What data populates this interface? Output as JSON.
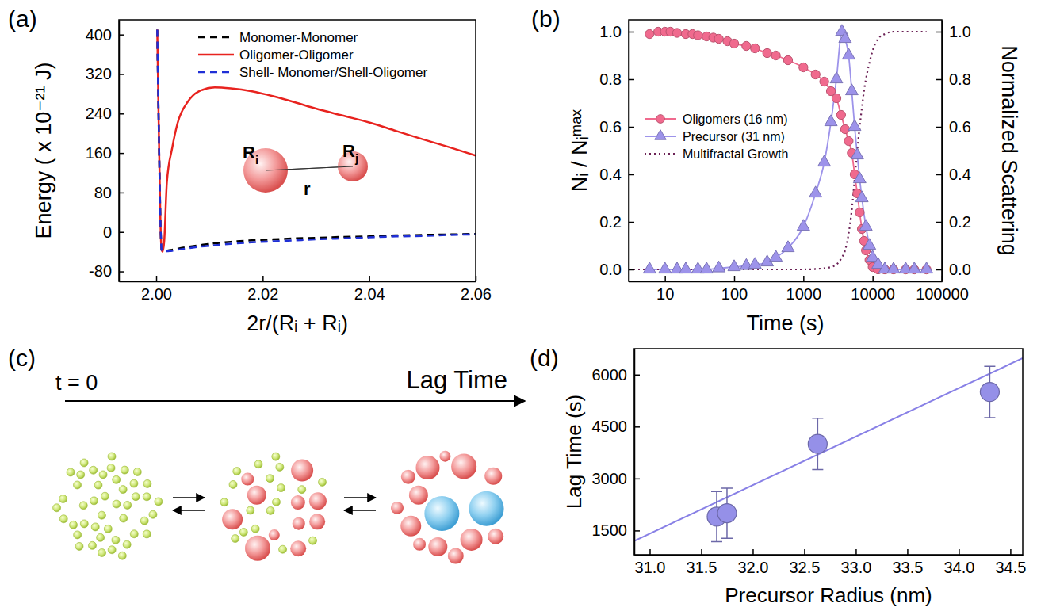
{
  "chart_data": [
    {
      "type": "line",
      "panel_label": "(a)",
      "xlabel": "2r/(Rᵢ + Rᵢ)",
      "ylabel": "Energy ( x 10⁻²¹ J)",
      "x": [
        2.0002,
        2.0005,
        2.0008,
        2.001,
        2.0012,
        2.0015,
        2.002,
        2.003,
        2.004,
        2.006,
        2.008,
        2.011,
        2.014,
        2.018,
        2.022,
        2.026,
        2.03,
        2.035,
        2.04,
        2.045,
        2.05,
        2.055,
        2.06
      ],
      "xlim": [
        1.993,
        2.06
      ],
      "xticks": [
        {
          "value": 2,
          "label": "2.00"
        },
        2.02,
        2.04,
        2.06
      ],
      "ylim": [
        -100,
        430
      ],
      "yticks": [
        -80,
        0,
        80,
        160,
        240,
        320,
        400
      ],
      "grid": false,
      "legend": "upper left",
      "annotations": [
        "Ri",
        "Rj",
        "r"
      ],
      "series": [
        {
          "name": "Monomer-Monomer",
          "color": "#000000",
          "line_style": "dashed",
          "values": [
            410,
            200,
            20,
            -35,
            -40,
            -40,
            -38,
            -36,
            -34,
            -30,
            -27,
            -23,
            -20,
            -17,
            -15,
            -13,
            -12,
            -10,
            -9,
            -7,
            -6,
            -5,
            -4
          ]
        },
        {
          "name": "Oligomer-Oligomer",
          "color": "#e8231f",
          "line_style": "solid",
          "values": [
            410,
            200,
            20,
            -35,
            -40,
            -20,
            100,
            170,
            220,
            265,
            285,
            293,
            291,
            285,
            275,
            263,
            250,
            236,
            222,
            205,
            188,
            172,
            155
          ]
        },
        {
          "name": "Shell- Monomer/Shell-Oligomer",
          "color": "#1f2fd6",
          "line_style": "dashed",
          "values": [
            410,
            200,
            20,
            -35,
            -40,
            -40,
            -39,
            -38,
            -36,
            -33,
            -30,
            -27,
            -24,
            -21,
            -19,
            -17,
            -15,
            -13,
            -11,
            -9,
            -8,
            -6,
            -5
          ]
        }
      ]
    },
    {
      "type": "line",
      "panel_label": "(b)",
      "log": "x",
      "xlabel": "Time (s)",
      "ylabel": "Nᵢ / Nᵢᵐᵃˣ",
      "y2label": "Normalized Scattering",
      "xlim": [
        3,
        100000
      ],
      "xticks": [
        10,
        100,
        1000,
        10000,
        100000
      ],
      "ylim": [
        -0.05,
        1.05
      ],
      "yticks": [
        {
          "value": 0,
          "label": "0.0"
        },
        0.2,
        0.4,
        0.6,
        0.8,
        {
          "value": 1,
          "label": "1.0"
        }
      ],
      "y2lim": [
        -0.05,
        1.05
      ],
      "y2ticks": [
        {
          "value": 0,
          "label": "0.0"
        },
        0.2,
        0.4,
        0.6,
        0.8,
        {
          "value": 1,
          "label": "1.0"
        }
      ],
      "grid": false,
      "legend": "left",
      "series": [
        {
          "name": "Oligomers (16 nm)",
          "color": "#f06a8e",
          "marker": "circle",
          "line_style": "solid",
          "x": [
            6,
            8,
            10,
            12,
            15,
            20,
            25,
            30,
            40,
            50,
            60,
            80,
            100,
            150,
            200,
            300,
            400,
            600,
            1000,
            1500,
            2000,
            2500,
            3000,
            3500,
            4000,
            4500,
            5000,
            5500,
            6000,
            6500,
            7000,
            7500,
            8000,
            9000,
            10000,
            12000,
            15000,
            20000,
            30000,
            40000,
            60000
          ],
          "values": [
            0.99,
            1.0,
            1.0,
            1.0,
            0.995,
            0.99,
            0.99,
            0.985,
            0.98,
            0.975,
            0.97,
            0.96,
            0.95,
            0.94,
            0.93,
            0.91,
            0.9,
            0.88,
            0.85,
            0.82,
            0.79,
            0.75,
            0.72,
            0.65,
            0.59,
            0.54,
            0.49,
            0.4,
            0.32,
            0.24,
            0.17,
            0.12,
            0.08,
            0.04,
            0.01,
            0,
            0,
            0,
            0,
            0,
            0
          ]
        },
        {
          "name": "Precursor (31 nm)",
          "color": "#9d93ea",
          "marker": "triangle",
          "line_style": "solid",
          "x": [
            6,
            10,
            15,
            20,
            30,
            40,
            60,
            100,
            150,
            200,
            300,
            400,
            600,
            1000,
            1500,
            2000,
            2500,
            3000,
            3600,
            4000,
            4500,
            5000,
            5500,
            6000,
            6500,
            7000,
            8000,
            9000,
            10000,
            12000,
            15000,
            20000,
            30000,
            40000,
            60000
          ],
          "values": [
            0,
            0,
            0,
            0,
            0,
            0,
            0.005,
            0.01,
            0.015,
            0.02,
            0.03,
            0.05,
            0.09,
            0.18,
            0.32,
            0.45,
            0.62,
            0.8,
            1.0,
            0.97,
            0.9,
            0.75,
            0.6,
            0.48,
            0.38,
            0.3,
            0.18,
            0.1,
            0.05,
            0.02,
            0,
            0,
            0,
            0,
            0
          ]
        },
        {
          "name": "Multifractal Growth",
          "color": "#6b2155",
          "marker": "none",
          "line_style": "dotted",
          "axis": "y2",
          "x": [
            3,
            100,
            1000,
            2000,
            2500,
            3000,
            3500,
            4000,
            4500,
            5000,
            5500,
            6000,
            6500,
            7000,
            7500,
            8000,
            9000,
            10000,
            12000,
            15000,
            20000,
            30000,
            60000
          ],
          "values": [
            0,
            0,
            0,
            0.005,
            0.01,
            0.02,
            0.045,
            0.08,
            0.15,
            0.25,
            0.38,
            0.5,
            0.6,
            0.68,
            0.75,
            0.8,
            0.87,
            0.92,
            0.97,
            0.99,
            1.0,
            1.0,
            1.0
          ]
        }
      ]
    },
    {
      "type": "diagram",
      "panel_label": "(c)",
      "annotations": [
        "t = 0",
        "Lag Time"
      ]
    },
    {
      "type": "scatter",
      "panel_label": "(d)",
      "xlabel": "Precursor Radius (nm)",
      "ylabel": "Lag Time (s)",
      "xlim": [
        30.85,
        34.62
      ],
      "xticks": [
        {
          "value": 31,
          "label": "31.0"
        },
        31.5,
        {
          "value": 32,
          "label": "32.0"
        },
        32.5,
        {
          "value": 33,
          "label": "33.0"
        },
        33.5,
        {
          "value": 34,
          "label": "34.0"
        },
        34.5
      ],
      "ylim": [
        800,
        6750
      ],
      "yticks": [
        1500,
        3000,
        4500,
        6000
      ],
      "grid": false,
      "series": [
        {
          "type": "scatter",
          "color": "#9590e8",
          "marker": "circle",
          "x": [
            31.65,
            31.75,
            32.63,
            34.3
          ],
          "values": [
            1900,
            2000,
            4000,
            5500
          ],
          "errors": [
            725,
            725,
            740,
            740
          ]
        },
        {
          "type": "line",
          "color": "#8880e6",
          "line_style": "solid",
          "x": [
            30.85,
            34.62
          ],
          "values": [
            1200,
            6480
          ]
        }
      ]
    }
  ]
}
